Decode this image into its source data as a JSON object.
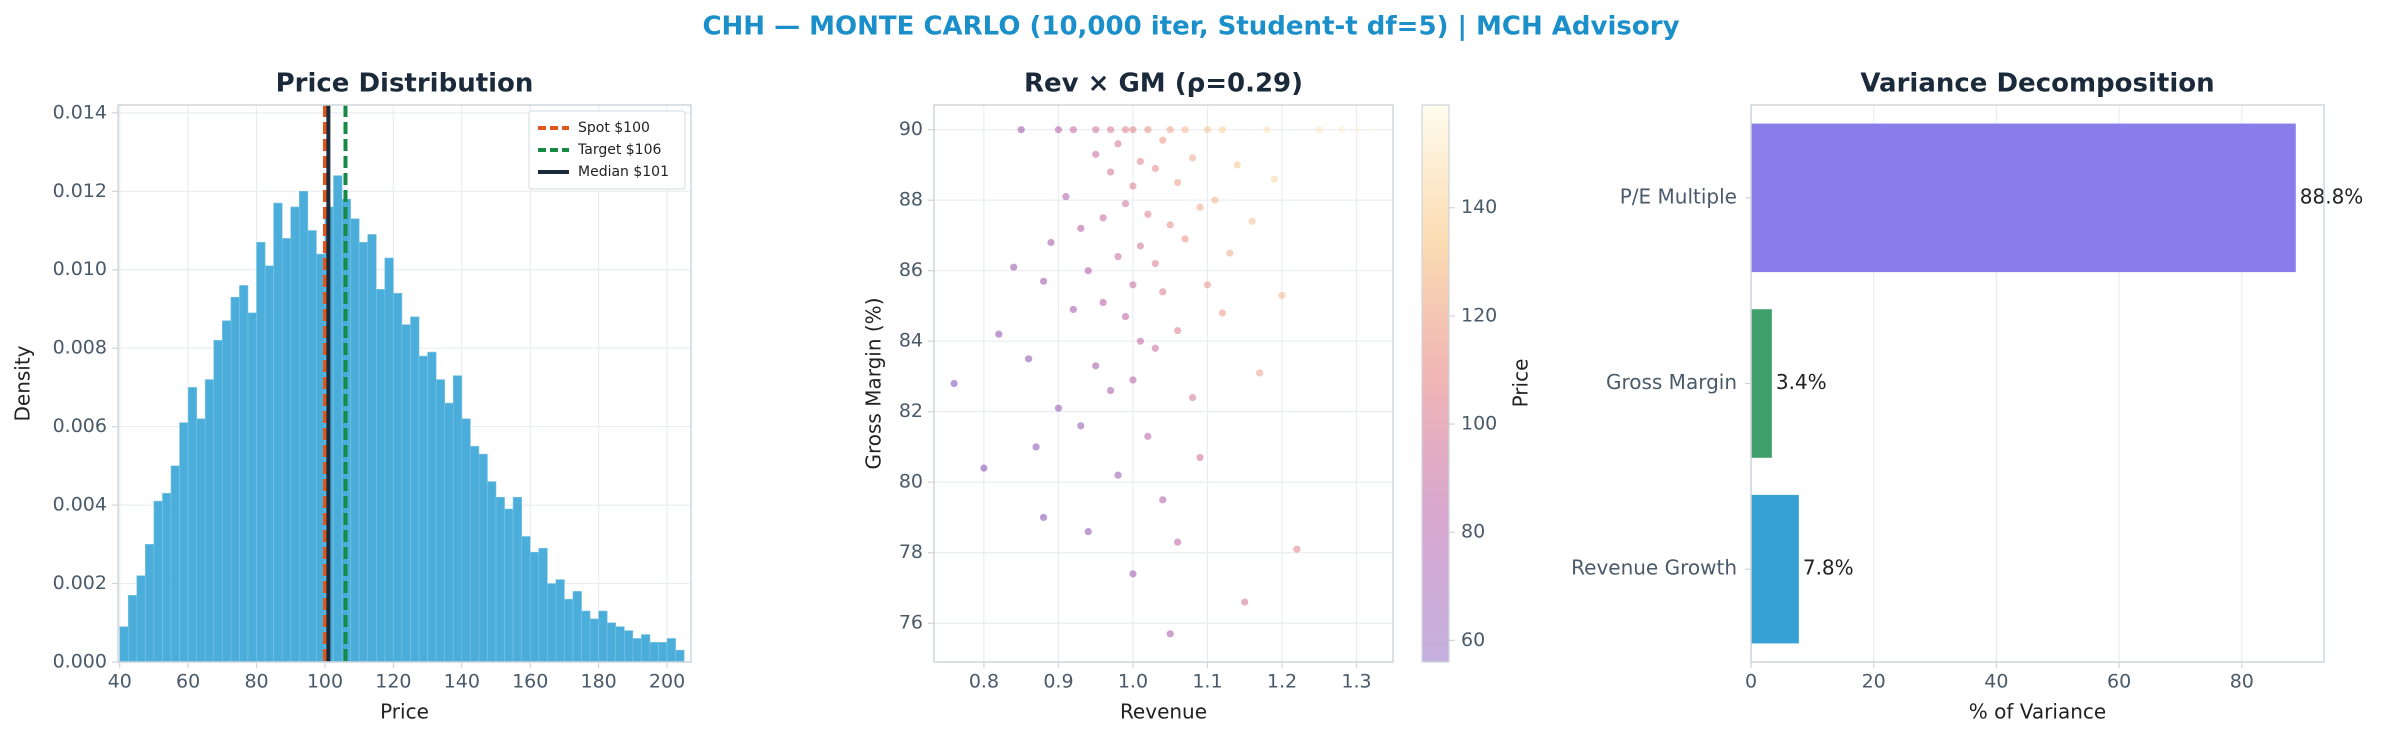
{
  "title": "CHH — MONTE CARLO (10,000 iter, Student-t df=5) | MCH Advisory",
  "chart_data": [
    {
      "type": "histogram",
      "title": "Price Distribution",
      "x_label": "Price",
      "y_label": "Density",
      "bins": [
        40,
        42.5,
        45,
        47.5,
        50,
        52.5,
        55,
        57.5,
        60,
        62.5,
        65,
        67.5,
        70,
        72.5,
        75,
        77.5,
        80,
        82.5,
        85,
        87.5,
        90,
        92.5,
        95,
        97.5,
        100,
        102.5,
        105,
        107.5,
        110,
        112.5,
        115,
        117.5,
        120,
        122.5,
        125,
        127.5,
        130,
        132.5,
        135,
        137.5,
        140,
        142.5,
        145,
        147.5,
        150,
        152.5,
        155,
        157.5,
        160,
        162.5,
        165,
        167.5,
        170,
        172.5,
        175,
        177.5,
        180,
        182.5,
        185,
        187.5,
        190,
        192.5,
        195,
        197.5,
        200,
        202.5,
        205
      ],
      "values": [
        0.0009,
        0.0017,
        0.0022,
        0.003,
        0.0041,
        0.0043,
        0.005,
        0.0061,
        0.007,
        0.0062,
        0.0072,
        0.0082,
        0.0087,
        0.0093,
        0.0096,
        0.0089,
        0.0107,
        0.0101,
        0.0117,
        0.0108,
        0.0116,
        0.012,
        0.011,
        0.0104,
        0.0116,
        0.0124,
        0.0118,
        0.0113,
        0.0107,
        0.0109,
        0.0095,
        0.0103,
        0.0094,
        0.0086,
        0.0088,
        0.0078,
        0.0079,
        0.0072,
        0.0066,
        0.0073,
        0.0062,
        0.0055,
        0.0053,
        0.0046,
        0.0042,
        0.0039,
        0.0042,
        0.0032,
        0.0028,
        0.0029,
        0.002,
        0.0021,
        0.0016,
        0.0018,
        0.0013,
        0.0011,
        0.0013,
        0.001,
        0.0009,
        0.0008,
        0.0006,
        0.0007,
        0.0005,
        0.0005,
        0.0006,
        0.0003
      ],
      "color": "#4badd9",
      "xlim": [
        39.5,
        207
      ],
      "xticks": [
        40,
        60,
        80,
        100,
        120,
        140,
        160,
        180,
        200
      ],
      "ylim": [
        0,
        0.0142
      ],
      "yticks": [
        {
          "value": 0,
          "label": "0.000"
        },
        0.002,
        0.004,
        0.006,
        0.008,
        {
          "value": 0.01,
          "label": "0.010"
        },
        0.012,
        0.014
      ],
      "reference_lines": [
        {
          "name": "Spot $100",
          "value": 100,
          "color": "#e0561a",
          "dashed": true
        },
        {
          "name": "Target $106",
          "value": 106,
          "color": "#158a45",
          "dashed": true
        },
        {
          "name": "Median $101",
          "value": 101,
          "color": "#1b2a3a",
          "dashed": false
        }
      ],
      "legend": "upper right",
      "grid": true
    },
    {
      "type": "scatter",
      "title": "Rev × GM (ρ=0.29)",
      "x_label": "Revenue",
      "y_label": "Gross Margin (%)",
      "colorbar_label": "Price",
      "x": [
        0.76,
        0.8,
        0.82,
        0.85,
        0.86,
        0.88,
        0.88,
        0.89,
        0.9,
        0.9,
        0.91,
        0.92,
        0.92,
        0.93,
        0.93,
        0.94,
        0.94,
        0.95,
        0.95,
        0.95,
        0.96,
        0.96,
        0.97,
        0.97,
        0.97,
        0.98,
        0.98,
        0.98,
        0.99,
        0.99,
        0.99,
        1.0,
        1.0,
        1.0,
        1.0,
        1.01,
        1.01,
        1.01,
        1.02,
        1.02,
        1.02,
        1.03,
        1.03,
        1.03,
        1.04,
        1.04,
        1.04,
        1.05,
        1.05,
        1.05,
        1.06,
        1.06,
        1.07,
        1.07,
        1.08,
        1.08,
        1.09,
        1.09,
        1.1,
        1.1,
        1.11,
        1.12,
        1.12,
        1.13,
        1.14,
        1.15,
        1.16,
        1.18,
        1.2,
        1.22,
        1.25,
        1.28,
        1.3,
        1.32,
        1.17,
        1.19,
        0.84,
        0.87,
        1.0,
        1.06
      ],
      "y": [
        82.8,
        80.4,
        84.2,
        90,
        83.5,
        85.7,
        79.0,
        86.8,
        90,
        82.1,
        88.1,
        84.9,
        90,
        87.2,
        81.6,
        86.0,
        78.6,
        89.3,
        83.3,
        90,
        87.5,
        85.1,
        88.8,
        82.6,
        90,
        86.4,
        80.2,
        89.6,
        84.7,
        87.9,
        90,
        88.4,
        85.6,
        82.9,
        77.4,
        89.1,
        86.7,
        84.0,
        87.6,
        90,
        81.3,
        88.9,
        86.2,
        83.8,
        89.7,
        85.4,
        79.5,
        87.3,
        90,
        75.7,
        88.5,
        84.3,
        90,
        86.9,
        89.2,
        82.4,
        87.8,
        80.7,
        90,
        85.6,
        88.0,
        90,
        84.8,
        86.5,
        89.0,
        76.6,
        87.4,
        90,
        85.3,
        78.1,
        90,
        90,
        90,
        90,
        83.1,
        88.6,
        86.1,
        81.0,
        90,
        78.3
      ],
      "c": [
        58,
        60,
        62,
        70,
        64,
        72,
        60,
        76,
        84,
        66,
        80,
        74,
        90,
        82,
        68,
        80,
        64,
        92,
        74,
        96,
        90,
        82,
        96,
        76,
        100,
        90,
        70,
        98,
        86,
        96,
        104,
        100,
        92,
        84,
        70,
        104,
        96,
        88,
        102,
        110,
        84,
        108,
        100,
        92,
        112,
        100,
        82,
        108,
        118,
        76,
        114,
        102,
        124,
        110,
        120,
        98,
        118,
        94,
        130,
        112,
        124,
        136,
        112,
        120,
        130,
        96,
        128,
        144,
        124,
        104,
        148,
        152,
        156,
        158,
        116,
        138,
        68,
        62,
        106,
        86
      ],
      "colormap": [
        "#5b1fa0",
        "#a0308f",
        "#e06b6a",
        "#f8c27a",
        "#fffbe6"
      ],
      "xlim": [
        0.733,
        1.349
      ],
      "xticks": [
        0.8,
        0.9,
        {
          "value": 1,
          "label": "1.0"
        },
        1.1,
        1.2,
        1.3
      ],
      "ylim": [
        74.9,
        90.7
      ],
      "yticks": [
        76,
        78,
        80,
        82,
        84,
        86,
        88,
        90
      ],
      "clim": [
        56,
        159
      ],
      "cticks": [
        60,
        80,
        100,
        120,
        140
      ],
      "grid": true
    },
    {
      "type": "barh",
      "title": "Variance Decomposition",
      "x_label": "% of Variance",
      "categories": [
        "P/E Multiple",
        "Gross Margin",
        "Revenue Growth"
      ],
      "values": [
        88.8,
        3.4,
        7.8
      ],
      "value_labels": [
        "88.8%",
        "3.4%",
        "7.8%"
      ],
      "colors": [
        "#8a7de9",
        "#3f9e6a",
        "#36a2d4"
      ],
      "xlim": [
        0,
        93.4
      ],
      "xticks": [
        0,
        20,
        40,
        60,
        80
      ],
      "grid": true
    }
  ]
}
